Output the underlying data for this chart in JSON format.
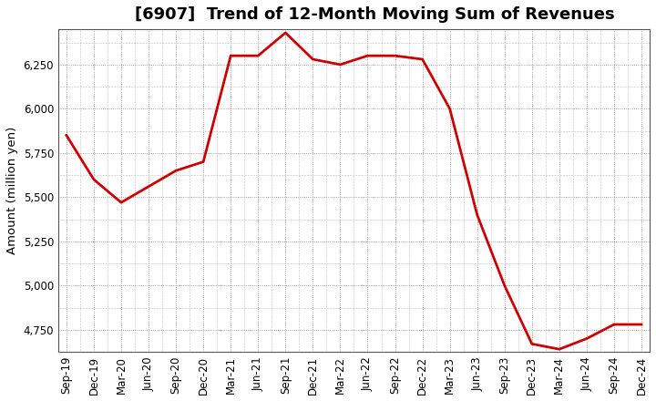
{
  "title": "[6907]  Trend of 12-Month Moving Sum of Revenues",
  "ylabel": "Amount (million yen)",
  "line_color": "#cc0000",
  "line_width": 2.0,
  "bg_color": "#ffffff",
  "plot_bg_color": "#ffffff",
  "grid_color": "#888888",
  "labels": [
    "Sep-19",
    "Dec-19",
    "Mar-20",
    "Jun-20",
    "Sep-20",
    "Dec-20",
    "Mar-21",
    "Jun-21",
    "Sep-21",
    "Dec-21",
    "Mar-22",
    "Jun-22",
    "Sep-22",
    "Dec-22",
    "Mar-23",
    "Jun-23",
    "Sep-23",
    "Dec-23",
    "Mar-24",
    "Jun-24",
    "Sep-24",
    "Dec-24"
  ],
  "values": [
    5850,
    5600,
    5470,
    5560,
    5650,
    5700,
    6300,
    6300,
    6430,
    6280,
    6250,
    6300,
    6300,
    6280,
    6000,
    5400,
    5000,
    4670,
    4640,
    4700,
    4780,
    4780
  ],
  "ylim": [
    4625,
    6450
  ],
  "yticks": [
    4750,
    5000,
    5250,
    5500,
    5750,
    6000,
    6250
  ],
  "title_fontsize": 13,
  "tick_fontsize": 8.5,
  "ylabel_fontsize": 9.5
}
